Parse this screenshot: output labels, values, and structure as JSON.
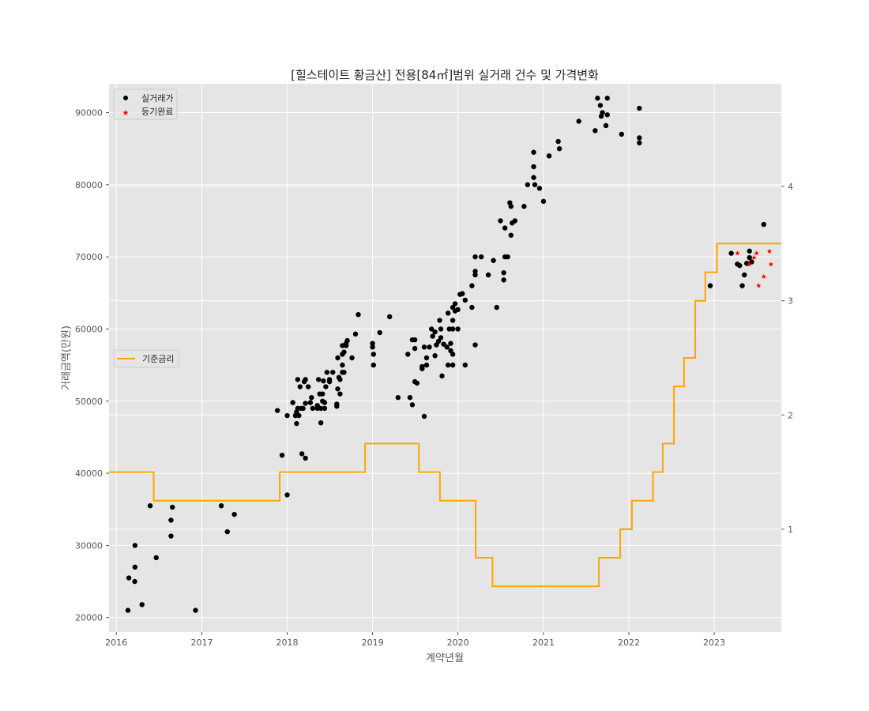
{
  "chart_data": {
    "type": "scatter",
    "title": "[힐스테이트 황금산] 전용[84㎡]범위 실거래 건수 및 가격변화",
    "xlabel": "계약년월",
    "ylabel": "거래금액(만원)",
    "x_ticks": [
      "2016",
      "2017",
      "2018",
      "2019",
      "2020",
      "2021",
      "2022",
      "2023"
    ],
    "y_ticks": [
      "20000",
      "30000",
      "40000",
      "50000",
      "60000",
      "70000",
      "80000",
      "90000"
    ],
    "y2_ticks": [
      "1",
      "2",
      "3",
      "4"
    ],
    "xlim": [
      "2015-12-01",
      "2023-10-15"
    ],
    "ylim": [
      18000,
      94000
    ],
    "y2lim": [
      0.1,
      4.9
    ],
    "grid": true,
    "background": "#e5e5e5",
    "legends": [
      {
        "placement": "upper-left",
        "entries": [
          {
            "label": "실거래가",
            "marker": "circle",
            "color": "#000000"
          },
          {
            "label": "등기완료",
            "marker": "star",
            "color": "#ff0000"
          }
        ]
      },
      {
        "placement": "center-left",
        "entries": [
          {
            "label": "기준금리",
            "marker": "line",
            "color": "#ffa500"
          }
        ]
      }
    ],
    "series": [
      {
        "name": "실거래가",
        "color": "#000000",
        "marker": "circle",
        "points": [
          [
            "2016-02-20",
            21000
          ],
          [
            "2016-02-24",
            25500
          ],
          [
            "2016-03-20",
            25000
          ],
          [
            "2016-03-21",
            27000
          ],
          [
            "2016-03-21",
            30000
          ],
          [
            "2016-04-20",
            21800
          ],
          [
            "2016-05-25",
            35500
          ],
          [
            "2016-06-20",
            28300
          ],
          [
            "2016-08-22",
            31300
          ],
          [
            "2016-08-22",
            33500
          ],
          [
            "2016-08-28",
            35300
          ],
          [
            "2016-12-05",
            21000
          ],
          [
            "2017-03-25",
            35500
          ],
          [
            "2017-04-20",
            31900
          ],
          [
            "2017-05-20",
            34300
          ],
          [
            "2017-11-20",
            48700
          ],
          [
            "2017-12-10",
            42500
          ],
          [
            "2018-01-01",
            37000
          ],
          [
            "2018-01-01",
            48000
          ],
          [
            "2018-01-25",
            49800
          ],
          [
            "2018-02-05",
            48000
          ],
          [
            "2018-02-10",
            46900
          ],
          [
            "2018-02-10",
            48500
          ],
          [
            "2018-02-15",
            49000
          ],
          [
            "2018-02-15",
            53000
          ],
          [
            "2018-02-20",
            48000
          ],
          [
            "2018-02-25",
            52000
          ],
          [
            "2018-03-01",
            49000
          ],
          [
            "2018-03-05",
            42700
          ],
          [
            "2018-03-10",
            49000
          ],
          [
            "2018-03-15",
            52700
          ],
          [
            "2018-03-20",
            53000
          ],
          [
            "2018-03-20",
            49700
          ],
          [
            "2018-03-20",
            42100
          ],
          [
            "2018-04-01",
            52000
          ],
          [
            "2018-04-10",
            49800
          ],
          [
            "2018-04-15",
            50500
          ],
          [
            "2018-04-20",
            49000
          ],
          [
            "2018-05-10",
            49000
          ],
          [
            "2018-05-10",
            49400
          ],
          [
            "2018-05-15",
            53000
          ],
          [
            "2018-05-20",
            51000
          ],
          [
            "2018-05-25",
            47000
          ],
          [
            "2018-05-25",
            49000
          ],
          [
            "2018-06-01",
            51000
          ],
          [
            "2018-06-01",
            50000
          ],
          [
            "2018-06-05",
            52800
          ],
          [
            "2018-06-10",
            49000
          ],
          [
            "2018-06-10",
            49800
          ],
          [
            "2018-06-15",
            52000
          ],
          [
            "2018-06-20",
            54000
          ],
          [
            "2018-07-01",
            52700
          ],
          [
            "2018-07-01",
            53000
          ],
          [
            "2018-07-15",
            54000
          ],
          [
            "2018-08-01",
            49600
          ],
          [
            "2018-08-01",
            49300
          ],
          [
            "2018-08-05",
            51700
          ],
          [
            "2018-08-05",
            56000
          ],
          [
            "2018-08-10",
            53300
          ],
          [
            "2018-08-15",
            51000
          ],
          [
            "2018-08-15",
            53000
          ],
          [
            "2018-08-25",
            54000
          ],
          [
            "2018-08-25",
            55000
          ],
          [
            "2018-08-25",
            57700
          ],
          [
            "2018-08-25",
            56500
          ],
          [
            "2018-09-01",
            54000
          ],
          [
            "2018-09-01",
            56800
          ],
          [
            "2018-09-10",
            57700
          ],
          [
            "2018-09-10",
            58000
          ],
          [
            "2018-09-15",
            58400
          ],
          [
            "2018-10-05",
            56000
          ],
          [
            "2018-10-20",
            59300
          ],
          [
            "2018-11-01",
            62000
          ],
          [
            "2019-01-01",
            57500
          ],
          [
            "2019-01-01",
            58000
          ],
          [
            "2019-01-05",
            55000
          ],
          [
            "2019-01-05",
            56500
          ],
          [
            "2019-02-01",
            59500
          ],
          [
            "2019-03-15",
            61700
          ],
          [
            "2019-04-20",
            50500
          ],
          [
            "2019-06-01",
            56500
          ],
          [
            "2019-06-10",
            50500
          ],
          [
            "2019-06-20",
            49500
          ],
          [
            "2019-06-20",
            58500
          ],
          [
            "2019-07-01",
            58500
          ],
          [
            "2019-07-01",
            57300
          ],
          [
            "2019-07-01",
            52700
          ],
          [
            "2019-07-10",
            52500
          ],
          [
            "2019-08-01",
            54500
          ],
          [
            "2019-08-01",
            54800
          ],
          [
            "2019-08-10",
            47900
          ],
          [
            "2019-08-10",
            57500
          ],
          [
            "2019-08-20",
            55000
          ],
          [
            "2019-08-20",
            56000
          ],
          [
            "2019-09-01",
            57500
          ],
          [
            "2019-09-10",
            60000
          ],
          [
            "2019-09-15",
            59000
          ],
          [
            "2019-09-25",
            56300
          ],
          [
            "2019-09-25",
            59600
          ],
          [
            "2019-10-01",
            57800
          ],
          [
            "2019-10-10",
            58300
          ],
          [
            "2019-10-15",
            61200
          ],
          [
            "2019-10-20",
            60000
          ],
          [
            "2019-10-20",
            58800
          ],
          [
            "2019-10-25",
            53500
          ],
          [
            "2019-11-01",
            57900
          ],
          [
            "2019-11-15",
            57500
          ],
          [
            "2019-11-20",
            55000
          ],
          [
            "2019-11-20",
            62200
          ],
          [
            "2019-11-25",
            60000
          ],
          [
            "2019-12-01",
            57000
          ],
          [
            "2019-12-01",
            58000
          ],
          [
            "2019-12-10",
            56500
          ],
          [
            "2019-12-10",
            60000
          ],
          [
            "2019-12-10",
            61200
          ],
          [
            "2019-12-10",
            63000
          ],
          [
            "2019-12-10",
            55000
          ],
          [
            "2019-12-20",
            62500
          ],
          [
            "2019-12-20",
            63500
          ],
          [
            "2020-01-01",
            62700
          ],
          [
            "2020-01-01",
            60000
          ],
          [
            "2020-01-10",
            64800
          ],
          [
            "2020-01-20",
            64900
          ],
          [
            "2020-02-01",
            64000
          ],
          [
            "2020-02-01",
            55000
          ],
          [
            "2020-03-01",
            63000
          ],
          [
            "2020-03-01",
            66000
          ],
          [
            "2020-03-15",
            68000
          ],
          [
            "2020-03-15",
            70000
          ],
          [
            "2020-03-15",
            67500
          ],
          [
            "2020-03-15",
            57800
          ],
          [
            "2020-04-10",
            70000
          ],
          [
            "2020-05-10",
            67500
          ],
          [
            "2020-06-01",
            69500
          ],
          [
            "2020-06-15",
            63000
          ],
          [
            "2020-07-01",
            75000
          ],
          [
            "2020-07-15",
            66800
          ],
          [
            "2020-07-15",
            67800
          ],
          [
            "2020-07-20",
            74000
          ],
          [
            "2020-07-20",
            70000
          ],
          [
            "2020-08-01",
            70000
          ],
          [
            "2020-08-10",
            77500
          ],
          [
            "2020-08-15",
            73000
          ],
          [
            "2020-08-15",
            77000
          ],
          [
            "2020-08-20",
            74700
          ],
          [
            "2020-09-01",
            75000
          ],
          [
            "2020-10-10",
            77000
          ],
          [
            "2020-10-25",
            80000
          ],
          [
            "2020-11-20",
            84500
          ],
          [
            "2020-11-20",
            82500
          ],
          [
            "2020-11-20",
            81000
          ],
          [
            "2020-11-25",
            80000
          ],
          [
            "2020-12-15",
            79500
          ],
          [
            "2021-01-01",
            77700
          ],
          [
            "2021-01-25",
            84000
          ],
          [
            "2021-03-05",
            86000
          ],
          [
            "2021-03-10",
            85000
          ],
          [
            "2021-06-01",
            88800
          ],
          [
            "2021-08-10",
            87500
          ],
          [
            "2021-08-20",
            92000
          ],
          [
            "2021-09-01",
            91000
          ],
          [
            "2021-09-05",
            89500
          ],
          [
            "2021-09-10",
            90000
          ],
          [
            "2021-09-25",
            88200
          ],
          [
            "2021-10-01",
            89700
          ],
          [
            "2021-10-01",
            92000
          ],
          [
            "2021-12-01",
            87000
          ],
          [
            "2022-02-15",
            90600
          ],
          [
            "2022-02-15",
            86500
          ],
          [
            "2022-02-15",
            85800
          ],
          [
            "2022-12-15",
            66000
          ],
          [
            "2023-03-15",
            70500
          ],
          [
            "2023-04-10",
            69000
          ],
          [
            "2023-04-20",
            68800
          ],
          [
            "2023-05-01",
            66000
          ],
          [
            "2023-05-10",
            67500
          ],
          [
            "2023-05-20",
            69100
          ],
          [
            "2023-06-01",
            69900
          ],
          [
            "2023-06-01",
            70800
          ],
          [
            "2023-06-10",
            69300
          ],
          [
            "2023-08-01",
            74500
          ]
        ]
      },
      {
        "name": "등기완료",
        "color": "#ff0000",
        "marker": "star",
        "points": [
          [
            "2023-04-10",
            70500
          ],
          [
            "2023-06-01",
            69000
          ],
          [
            "2023-06-20",
            69900
          ],
          [
            "2023-07-01",
            70500
          ],
          [
            "2023-07-10",
            66000
          ],
          [
            "2023-08-01",
            67300
          ],
          [
            "2023-08-25",
            70800
          ],
          [
            "2023-09-01",
            69000
          ]
        ]
      },
      {
        "name": "기준금리",
        "color": "#ffa500",
        "axis": "right",
        "steps": [
          [
            "2015-12-01",
            1.5
          ],
          [
            "2016-06-09",
            1.25
          ],
          [
            "2017-11-30",
            1.5
          ],
          [
            "2018-11-30",
            1.75
          ],
          [
            "2019-07-18",
            1.5
          ],
          [
            "2019-10-16",
            1.25
          ],
          [
            "2020-03-17",
            0.75
          ],
          [
            "2020-05-28",
            0.5
          ],
          [
            "2021-08-26",
            0.75
          ],
          [
            "2021-11-25",
            1.0
          ],
          [
            "2022-01-14",
            1.25
          ],
          [
            "2022-04-14",
            1.5
          ],
          [
            "2022-05-26",
            1.75
          ],
          [
            "2022-07-13",
            2.25
          ],
          [
            "2022-08-25",
            2.5
          ],
          [
            "2022-10-12",
            3.0
          ],
          [
            "2022-11-24",
            3.25
          ],
          [
            "2023-01-13",
            3.5
          ],
          [
            "2023-10-15",
            3.5
          ]
        ]
      }
    ]
  }
}
